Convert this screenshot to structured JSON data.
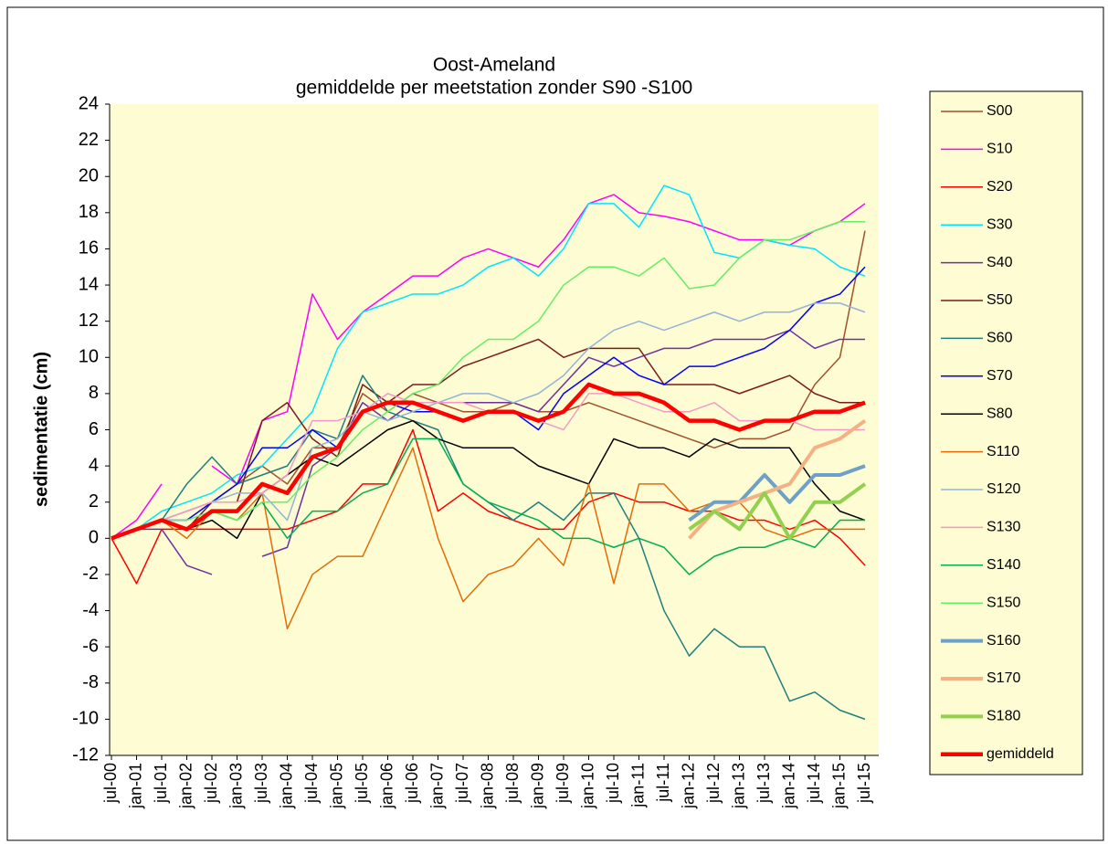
{
  "chart_data": {
    "type": "line",
    "title": "Oost-Ameland",
    "subtitle": "gemiddelde per meetstation zonder S90 -S100",
    "y_label": "sedimentatie (cm)",
    "legend": "right",
    "grid": false,
    "categories": [
      "jul-00",
      "jan-01",
      "jul-01",
      "jan-02",
      "jul-02",
      "jan-03",
      "jul-03",
      "jan-04",
      "jul-04",
      "jan-05",
      "jul-05",
      "jan-06",
      "jul-06",
      "jan-07",
      "jul-07",
      "jan-08",
      "jul-08",
      "jan-09",
      "jul-09",
      "jan-10",
      "jul-10",
      "jan-11",
      "jul-11",
      "jan-12",
      "jul-12",
      "jan-13",
      "jul-13",
      "jan-14",
      "jul-14",
      "jan-15",
      "jul-15"
    ],
    "ylim": [
      -12,
      24
    ],
    "yticks": [
      -12,
      -10,
      -8,
      -6,
      -4,
      -2,
      0,
      2,
      4,
      6,
      8,
      10,
      12,
      14,
      16,
      18,
      20,
      22,
      24
    ],
    "series": [
      {
        "name": "S00",
        "color": "#a0522d",
        "line_width": 1.5,
        "values": [
          0,
          0.5,
          1,
          1.5,
          2,
          3,
          4,
          3,
          5,
          5,
          8,
          7,
          8,
          7.5,
          7,
          7,
          7.5,
          7,
          7,
          7.5,
          7,
          6.5,
          6,
          5.5,
          5,
          5.5,
          5.5,
          6,
          8.5,
          10,
          17
        ]
      },
      {
        "name": "S10",
        "color": "#ff00ff",
        "line_width": 1.5,
        "values": [
          0,
          1,
          3,
          null,
          4,
          3,
          6.5,
          7,
          13.5,
          11,
          12.5,
          13.5,
          14.5,
          14.5,
          15.5,
          16,
          15.5,
          15,
          16.5,
          18.5,
          19,
          18,
          17.8,
          17.5,
          17,
          16.5,
          16.5,
          16.2,
          17,
          17.5,
          18.5
        ]
      },
      {
        "name": "S20",
        "color": "#ff0000",
        "line_width": 1.5,
        "values": [
          0,
          -2.5,
          0.5,
          0.5,
          0.5,
          0.5,
          0.5,
          0.5,
          1,
          1.5,
          3,
          3,
          6,
          1.5,
          2.5,
          1.5,
          1,
          0.5,
          0.5,
          2,
          2.5,
          2,
          2,
          1.5,
          1.5,
          1,
          1,
          0.5,
          1,
          0,
          -1.5
        ]
      },
      {
        "name": "S30",
        "color": "#00e5ff",
        "line_width": 1.5,
        "values": [
          0,
          0.5,
          1.5,
          2,
          2.5,
          3.5,
          4,
          5.5,
          7,
          10.5,
          12.5,
          13,
          13.5,
          13.5,
          14,
          15,
          15.5,
          14.5,
          16,
          18.5,
          18.5,
          17.2,
          19.5,
          19,
          15.8,
          15.5,
          16.5,
          16.2,
          16,
          15,
          14.5
        ]
      },
      {
        "name": "S40",
        "color": "#7030a0",
        "line_width": 1.5,
        "values": [
          0,
          0.5,
          0.5,
          -1.5,
          -2,
          null,
          -1,
          -0.5,
          4,
          5,
          7.5,
          6.5,
          7.5,
          7.5,
          7.5,
          7.5,
          7.5,
          7,
          8.5,
          10,
          9.5,
          10,
          10.5,
          10.5,
          11,
          11,
          11,
          11.5,
          10.5,
          11,
          11
        ]
      },
      {
        "name": "S50",
        "color": "#7b1c1c",
        "line_width": 1.5,
        "values": [
          0,
          0.5,
          1,
          0.5,
          2,
          2,
          6.5,
          7.5,
          5.5,
          4.5,
          8.5,
          7.5,
          8.5,
          8.5,
          9.5,
          10,
          10.5,
          11,
          10,
          10.5,
          10.5,
          10.5,
          8.5,
          8.5,
          8.5,
          8,
          8.5,
          9,
          8,
          7.5,
          7.5
        ]
      },
      {
        "name": "S60",
        "color": "#1f7f7f",
        "line_width": 1.5,
        "values": [
          0,
          0.5,
          1,
          3,
          4.5,
          3,
          3.5,
          4,
          6,
          5.5,
          9,
          7,
          6.5,
          6,
          3,
          2,
          1,
          2,
          1,
          2.5,
          2.5,
          0,
          -4,
          -6.5,
          -5,
          -6,
          -6,
          -9,
          -8.5,
          -9.5,
          -10
        ]
      },
      {
        "name": "S70",
        "color": "#0000ff",
        "line_width": 1.5,
        "values": [
          0,
          0.5,
          1,
          1,
          2,
          3,
          5,
          5,
          6,
          5,
          7,
          7.5,
          7,
          7,
          6.5,
          7,
          7,
          6,
          8,
          9,
          10,
          9,
          8.5,
          9.5,
          9.5,
          10,
          10.5,
          11.5,
          13,
          13.5,
          15
        ]
      },
      {
        "name": "S80",
        "color": "#000000",
        "line_width": 1.5,
        "values": [
          0,
          0.5,
          1,
          0.5,
          1,
          0,
          2.5,
          3.5,
          4.5,
          4,
          5,
          6,
          6.5,
          5.5,
          5,
          5,
          5,
          4,
          3.5,
          3,
          5.5,
          5,
          5,
          4.5,
          5.5,
          5,
          5,
          5,
          3,
          1.5,
          1
        ]
      },
      {
        "name": "S110",
        "color": "#e36c09",
        "line_width": 1.5,
        "values": [
          0,
          0.5,
          1,
          0,
          1.5,
          1,
          2.5,
          -5,
          -2,
          -1,
          -1,
          2,
          5,
          0,
          -3.5,
          -2,
          -1.5,
          0,
          -1.5,
          3,
          -2.5,
          3,
          3,
          1.5,
          2,
          2,
          0.5,
          0,
          0.5,
          0.5,
          0.5
        ]
      },
      {
        "name": "S120",
        "color": "#95b3d7",
        "line_width": 1.5,
        "values": [
          0,
          0.5,
          1,
          1.5,
          2,
          2.5,
          2.5,
          1,
          5,
          5.5,
          7,
          6.5,
          7,
          7.5,
          8,
          8,
          7.5,
          8,
          9,
          10.5,
          11.5,
          12,
          11.5,
          12,
          12.5,
          12,
          12.5,
          12.5,
          13,
          13,
          12.5
        ]
      },
      {
        "name": "S130",
        "color": "#f49ac8",
        "line_width": 1.5,
        "values": [
          0,
          0.5,
          1,
          1.5,
          2,
          2,
          2.5,
          3.5,
          6.5,
          6.5,
          7,
          8,
          7.5,
          7.5,
          7.5,
          7,
          7,
          6.5,
          6,
          8,
          8,
          7.5,
          7,
          7,
          7.5,
          6.5,
          6.5,
          6.5,
          6,
          6,
          6
        ]
      },
      {
        "name": "S140",
        "color": "#00b050",
        "line_width": 1.5,
        "values": [
          0,
          0.5,
          1,
          0.5,
          1.5,
          1,
          2,
          0,
          1.5,
          1.5,
          2.5,
          3,
          5.5,
          5.5,
          3,
          2,
          1.5,
          1,
          0,
          0,
          -0.5,
          0,
          -0.5,
          -2,
          -1,
          -0.5,
          -0.5,
          0,
          -0.5,
          1,
          1
        ]
      },
      {
        "name": "S150",
        "color": "#66ee66",
        "line_width": 1.5,
        "values": [
          0,
          0.5,
          1,
          1,
          1.5,
          1,
          2,
          2,
          3.5,
          4.5,
          6,
          7,
          8,
          8.5,
          10,
          11,
          11,
          12,
          14,
          15,
          15,
          14.5,
          15.5,
          13.8,
          14,
          15.5,
          16.5,
          16.5,
          17,
          17.5,
          17.5
        ]
      },
      {
        "name": "S160",
        "color": "#6fa0c8",
        "line_width": 4,
        "values": [
          null,
          null,
          null,
          null,
          null,
          null,
          null,
          null,
          null,
          null,
          null,
          null,
          null,
          null,
          null,
          null,
          null,
          null,
          null,
          null,
          null,
          null,
          null,
          1,
          2,
          2,
          3.5,
          2,
          3.5,
          3.5,
          4
        ]
      },
      {
        "name": "S170",
        "color": "#f4b183",
        "line_width": 4,
        "values": [
          null,
          null,
          null,
          null,
          null,
          null,
          null,
          null,
          null,
          null,
          null,
          null,
          null,
          null,
          null,
          null,
          null,
          null,
          null,
          null,
          null,
          null,
          null,
          0,
          1.5,
          2,
          2.5,
          3,
          5,
          5.5,
          6.5
        ]
      },
      {
        "name": "S180",
        "color": "#92d050",
        "line_width": 4,
        "values": [
          null,
          null,
          null,
          null,
          null,
          null,
          null,
          null,
          null,
          null,
          null,
          null,
          null,
          null,
          null,
          null,
          null,
          null,
          null,
          null,
          null,
          null,
          null,
          0.5,
          1.5,
          0.5,
          2.5,
          0,
          2,
          2,
          3
        ]
      },
      {
        "name": "gemiddeld",
        "color": "#ff0000",
        "line_width": 4.5,
        "values": [
          0,
          0.5,
          1,
          0.5,
          1.5,
          1.5,
          3,
          2.5,
          4.5,
          5,
          7,
          7.5,
          7.5,
          7,
          6.5,
          7,
          7,
          6.5,
          7,
          8.5,
          8,
          8,
          7.5,
          6.5,
          6.5,
          6,
          6.5,
          6.5,
          7,
          7,
          7.5
        ]
      }
    ]
  }
}
